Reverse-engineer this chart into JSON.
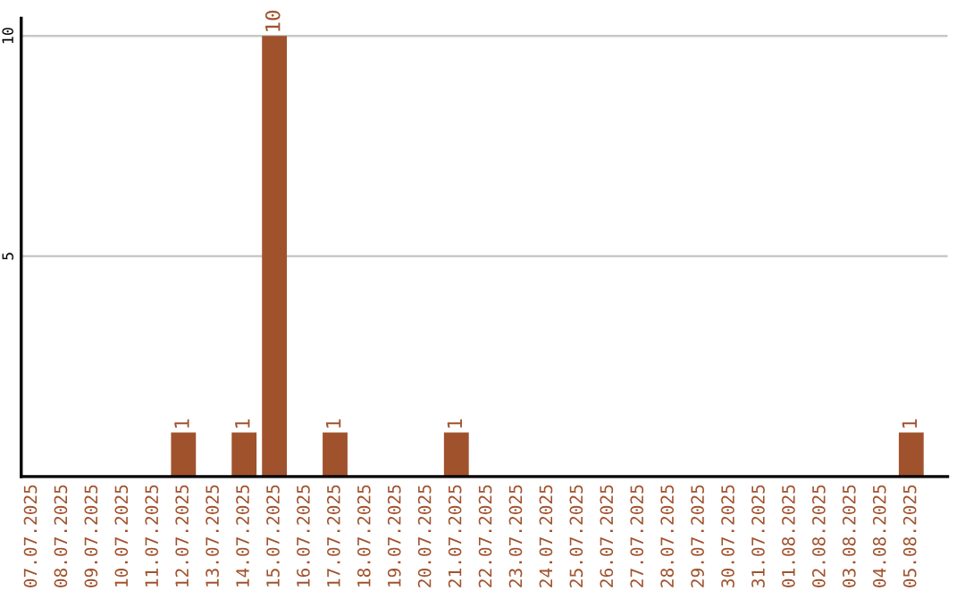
{
  "chart_data": {
    "type": "bar",
    "categories": [
      "07.07.2025",
      "08.07.2025",
      "09.07.2025",
      "10.07.2025",
      "11.07.2025",
      "12.07.2025",
      "13.07.2025",
      "14.07.2025",
      "15.07.2025",
      "16.07.2025",
      "17.07.2025",
      "18.07.2025",
      "19.07.2025",
      "20.07.2025",
      "21.07.2025",
      "22.07.2025",
      "23.07.2025",
      "24.07.2025",
      "25.07.2025",
      "26.07.2025",
      "27.07.2025",
      "28.07.2025",
      "29.07.2025",
      "30.07.2025",
      "31.07.2025",
      "01.08.2025",
      "02.08.2025",
      "03.08.2025",
      "04.08.2025",
      "05.08.2025"
    ],
    "values": [
      0,
      0,
      0,
      0,
      0,
      1,
      0,
      1,
      10,
      0,
      1,
      0,
      0,
      0,
      1,
      0,
      0,
      0,
      0,
      0,
      0,
      0,
      0,
      0,
      0,
      0,
      0,
      0,
      0,
      1
    ],
    "value_labels": [
      null,
      null,
      null,
      null,
      null,
      "1",
      null,
      "1",
      "10",
      null,
      "1",
      null,
      null,
      null,
      "1",
      null,
      null,
      null,
      null,
      null,
      null,
      null,
      null,
      null,
      null,
      null,
      null,
      null,
      null,
      "1"
    ],
    "color": "#a0522d",
    "ylim": [
      0,
      10.4
    ],
    "yticks": [
      5,
      10
    ],
    "grid": "y"
  }
}
